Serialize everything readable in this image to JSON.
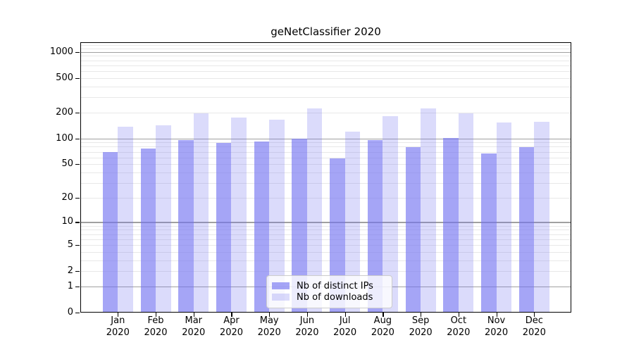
{
  "chart_data": {
    "type": "bar",
    "title": "geNetClassifier 2020",
    "categories": [
      "Jan",
      "Feb",
      "Mar",
      "Apr",
      "May",
      "Jun",
      "Jul",
      "Aug",
      "Sep",
      "Oct",
      "Nov",
      "Dec"
    ],
    "category_year": "2020",
    "series": [
      {
        "name": "Nb of distinct IPs",
        "color": "#7070f1a0",
        "values": [
          70,
          76,
          96,
          89,
          93,
          100,
          58,
          96,
          79,
          102,
          67,
          80
        ]
      },
      {
        "name": "Nb of downloads",
        "color": "#7070f140",
        "values": [
          136,
          143,
          196,
          175,
          166,
          225,
          119,
          183,
          225,
          196,
          154,
          156
        ]
      }
    ],
    "yticks": [
      0,
      1,
      2,
      5,
      10,
      20,
      50,
      100,
      200,
      500,
      1000
    ],
    "scale": "log10(value+1)",
    "ylim": [
      0,
      1300
    ],
    "xlabel": "",
    "ylabel": "",
    "grid": "horizontal",
    "legend_position": "bottom-center"
  },
  "colors": {
    "major_grid": "#a0a0a0",
    "minor_grid": "#e8e8e8",
    "frame": "#000000",
    "text": "#000000",
    "legend_border": "#cccccc"
  }
}
